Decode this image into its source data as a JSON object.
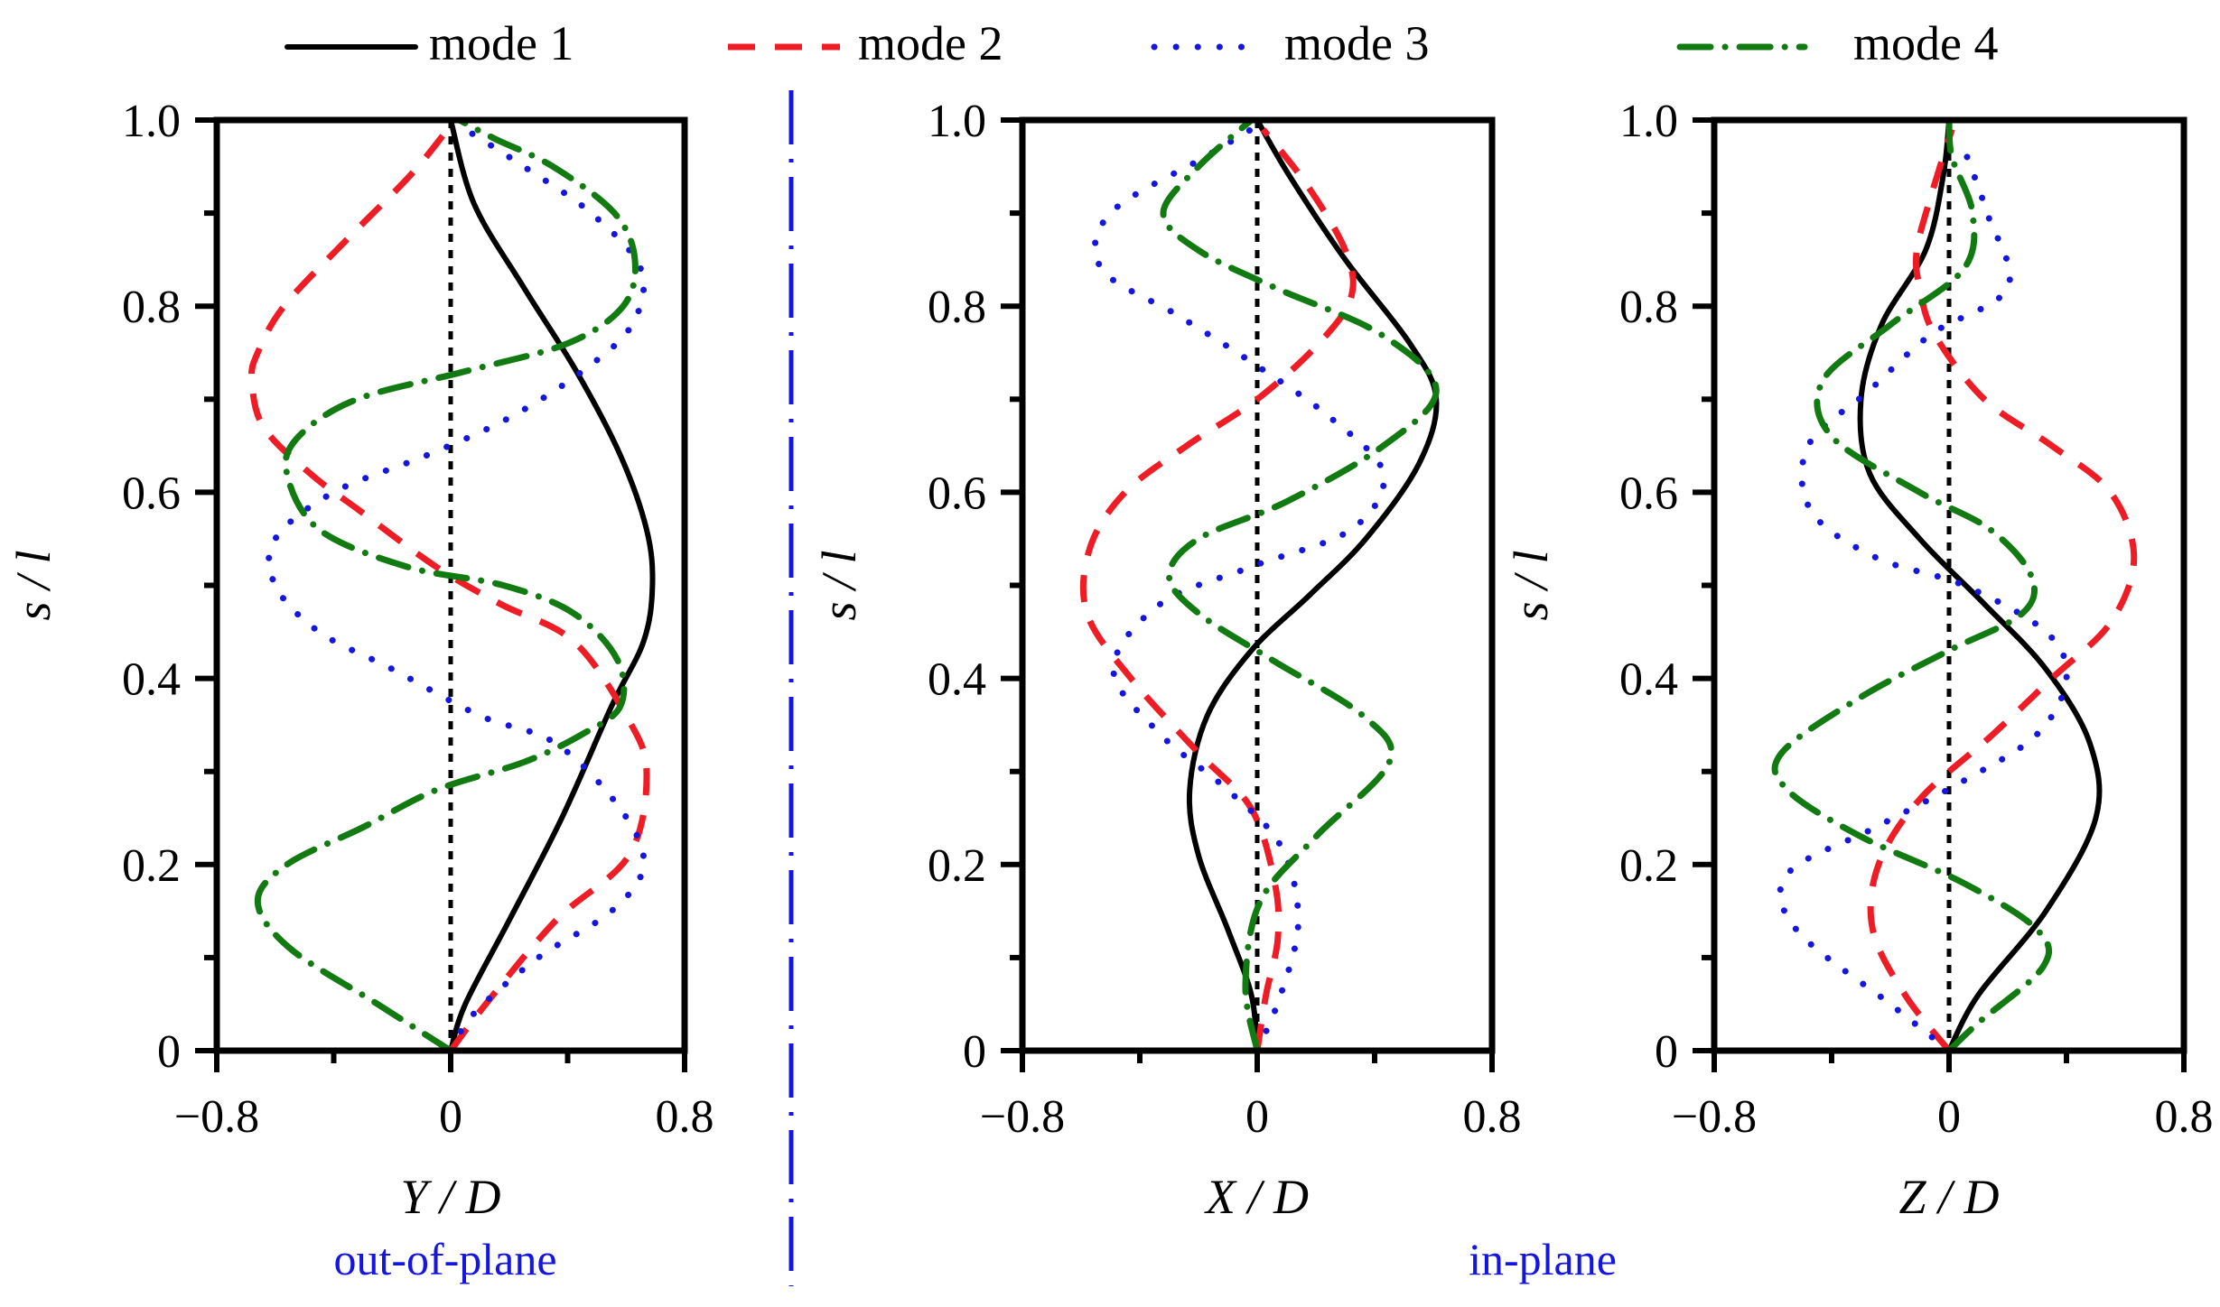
{
  "legend": [
    {
      "name": "mode 1",
      "color": "#000000",
      "dash": "solid"
    },
    {
      "name": "mode 2",
      "color": "#ee1c25",
      "dash": "dashed"
    },
    {
      "name": "mode 3",
      "color": "#1515e0",
      "dash": "dotted"
    },
    {
      "name": "mode 4",
      "color": "#117a11",
      "dash": "dashdot"
    }
  ],
  "group_labels": {
    "out_of_plane": "out-of-plane",
    "in_plane": "in-plane"
  },
  "group_label_color": "#1515e0",
  "chart_data": [
    {
      "type": "line",
      "xlabel": "Y / D",
      "ylabel": "s / l",
      "xlim": [
        -0.8,
        0.8
      ],
      "ylim": [
        0,
        1.0
      ],
      "xticks": [
        -0.8,
        0,
        0.8
      ],
      "xtick_labels": [
        "−0.8",
        "0",
        "0.8"
      ],
      "yticks": [
        0,
        0.2,
        0.4,
        0.6,
        0.8,
        1.0
      ],
      "ytick_labels": [
        "0",
        "0.2",
        "0.4",
        "0.6",
        "0.8",
        "1.0"
      ],
      "zero_line": true,
      "series": [
        {
          "name": "mode 1",
          "points": [
            [
              0,
              0
            ],
            [
              0.05,
              0.05
            ],
            [
              0.2,
              0.14
            ],
            [
              0.38,
              0.25
            ],
            [
              0.55,
              0.37
            ],
            [
              0.66,
              0.44
            ],
            [
              0.69,
              0.5
            ],
            [
              0.67,
              0.56
            ],
            [
              0.58,
              0.64
            ],
            [
              0.43,
              0.73
            ],
            [
              0.25,
              0.82
            ],
            [
              0.08,
              0.91
            ],
            [
              0,
              1
            ]
          ]
        },
        {
          "name": "mode 2",
          "points": [
            [
              0,
              0
            ],
            [
              0.12,
              0.05
            ],
            [
              0.36,
              0.14
            ],
            [
              0.61,
              0.21
            ],
            [
              0.67,
              0.3
            ],
            [
              0.6,
              0.36
            ],
            [
              0.42,
              0.44
            ],
            [
              0.17,
              0.48
            ],
            [
              -0.05,
              0.52
            ],
            [
              -0.31,
              0.58
            ],
            [
              -0.48,
              0.62
            ],
            [
              -0.64,
              0.67
            ],
            [
              -0.68,
              0.72
            ],
            [
              -0.66,
              0.75
            ],
            [
              -0.57,
              0.8
            ],
            [
              -0.36,
              0.87
            ],
            [
              -0.14,
              0.94
            ],
            [
              -0.01,
              0.99
            ]
          ]
        },
        {
          "name": "mode 3",
          "points": [
            [
              0,
              0
            ],
            [
              0.08,
              0.04
            ],
            [
              0.3,
              0.1
            ],
            [
              0.55,
              0.15
            ],
            [
              0.66,
              0.2
            ],
            [
              0.58,
              0.26
            ],
            [
              0.36,
              0.33
            ],
            [
              0.1,
              0.36
            ],
            [
              -0.2,
              0.41
            ],
            [
              -0.45,
              0.45
            ],
            [
              -0.6,
              0.5
            ],
            [
              -0.6,
              0.55
            ],
            [
              -0.4,
              0.6
            ],
            [
              -0.08,
              0.64
            ],
            [
              0.2,
              0.68
            ],
            [
              0.45,
              0.73
            ],
            [
              0.62,
              0.78
            ],
            [
              0.65,
              0.84
            ],
            [
              0.48,
              0.9
            ],
            [
              0.25,
              0.95
            ],
            [
              0.05,
              0.99
            ]
          ]
        },
        {
          "name": "mode 4",
          "points": [
            [
              0,
              0
            ],
            [
              -0.25,
              0.05
            ],
            [
              -0.55,
              0.11
            ],
            [
              -0.66,
              0.16
            ],
            [
              -0.56,
              0.2
            ],
            [
              -0.3,
              0.24
            ],
            [
              -0.05,
              0.28
            ],
            [
              0.25,
              0.31
            ],
            [
              0.45,
              0.34
            ],
            [
              0.58,
              0.37
            ],
            [
              0.57,
              0.42
            ],
            [
              0.42,
              0.47
            ],
            [
              0.18,
              0.5
            ],
            [
              -0.15,
              0.52
            ],
            [
              -0.45,
              0.56
            ],
            [
              -0.56,
              0.62
            ],
            [
              -0.52,
              0.66
            ],
            [
              -0.32,
              0.7
            ],
            [
              0.05,
              0.73
            ],
            [
              0.4,
              0.76
            ],
            [
              0.59,
              0.8
            ],
            [
              0.63,
              0.85
            ],
            [
              0.56,
              0.9
            ],
            [
              0.35,
              0.95
            ],
            [
              0.15,
              0.98
            ],
            [
              0.03,
              1.0
            ]
          ]
        }
      ]
    },
    {
      "type": "line",
      "xlabel": "X / D",
      "ylabel": "s / l",
      "xlim": [
        -0.8,
        0.8
      ],
      "ylim": [
        0,
        1.0
      ],
      "xticks": [
        -0.8,
        0,
        0.8
      ],
      "xtick_labels": [
        "−0.8",
        "0",
        "0.8"
      ],
      "yticks": [
        0,
        0.2,
        0.4,
        0.6,
        0.8,
        1.0
      ],
      "ytick_labels": [
        "0",
        "0.2",
        "0.4",
        "0.6",
        "0.8",
        "1.0"
      ],
      "zero_line": true,
      "series": [
        {
          "name": "mode 1",
          "points": [
            [
              0,
              0
            ],
            [
              -0.02,
              0.06
            ],
            [
              -0.1,
              0.13
            ],
            [
              -0.2,
              0.21
            ],
            [
              -0.23,
              0.28
            ],
            [
              -0.17,
              0.36
            ],
            [
              -0.02,
              0.43
            ],
            [
              0.18,
              0.49
            ],
            [
              0.37,
              0.55
            ],
            [
              0.55,
              0.63
            ],
            [
              0.61,
              0.7
            ],
            [
              0.52,
              0.76
            ],
            [
              0.3,
              0.85
            ],
            [
              0.11,
              0.94
            ],
            [
              0,
              1
            ]
          ]
        },
        {
          "name": "mode 2",
          "points": [
            [
              0,
              0
            ],
            [
              0.03,
              0.06
            ],
            [
              0.07,
              0.12
            ],
            [
              0.06,
              0.18
            ],
            [
              -0.02,
              0.26
            ],
            [
              -0.2,
              0.32
            ],
            [
              -0.43,
              0.4
            ],
            [
              -0.58,
              0.47
            ],
            [
              -0.57,
              0.54
            ],
            [
              -0.45,
              0.6
            ],
            [
              -0.24,
              0.65
            ],
            [
              0,
              0.7
            ],
            [
              0.21,
              0.76
            ],
            [
              0.32,
              0.81
            ],
            [
              0.3,
              0.86
            ],
            [
              0.17,
              0.93
            ],
            [
              0.02,
              0.99
            ]
          ]
        },
        {
          "name": "mode 3",
          "points": [
            [
              0,
              0
            ],
            [
              0.08,
              0.06
            ],
            [
              0.14,
              0.14
            ],
            [
              0.08,
              0.22
            ],
            [
              -0.1,
              0.28
            ],
            [
              -0.33,
              0.34
            ],
            [
              -0.49,
              0.41
            ],
            [
              -0.33,
              0.48
            ],
            [
              -0.02,
              0.52
            ],
            [
              0.32,
              0.56
            ],
            [
              0.43,
              0.62
            ],
            [
              0.25,
              0.68
            ],
            [
              -0.02,
              0.74
            ],
            [
              -0.27,
              0.79
            ],
            [
              -0.53,
              0.84
            ],
            [
              -0.5,
              0.9
            ],
            [
              -0.18,
              0.96
            ],
            [
              -0.02,
              0.99
            ]
          ]
        },
        {
          "name": "mode 4",
          "points": [
            [
              0,
              0
            ],
            [
              -0.04,
              0.07
            ],
            [
              0.01,
              0.16
            ],
            [
              0.2,
              0.23
            ],
            [
              0.45,
              0.31
            ],
            [
              0.36,
              0.36
            ],
            [
              0.05,
              0.42
            ],
            [
              -0.2,
              0.47
            ],
            [
              -0.3,
              0.51
            ],
            [
              -0.2,
              0.55
            ],
            [
              0.1,
              0.59
            ],
            [
              0.43,
              0.65
            ],
            [
              0.61,
              0.71
            ],
            [
              0.42,
              0.77
            ],
            [
              0.06,
              0.82
            ],
            [
              -0.2,
              0.86
            ],
            [
              -0.32,
              0.9
            ],
            [
              -0.2,
              0.95
            ],
            [
              -0.02,
              1.0
            ]
          ]
        }
      ]
    },
    {
      "type": "line",
      "xlabel": "Z / D",
      "ylabel": "s / l",
      "xlim": [
        -0.8,
        0.8
      ],
      "ylim": [
        0,
        1.0
      ],
      "xticks": [
        -0.8,
        0,
        0.8
      ],
      "xtick_labels": [
        "−0.8",
        "0",
        "0.8"
      ],
      "yticks": [
        0,
        0.2,
        0.4,
        0.6,
        0.8,
        1.0
      ],
      "ytick_labels": [
        "0",
        "0.2",
        "0.4",
        "0.6",
        "0.8",
        "1.0"
      ],
      "zero_line": true,
      "series": [
        {
          "name": "mode 1",
          "points": [
            [
              0,
              0
            ],
            [
              0.1,
              0.06
            ],
            [
              0.33,
              0.15
            ],
            [
              0.5,
              0.25
            ],
            [
              0.48,
              0.33
            ],
            [
              0.33,
              0.41
            ],
            [
              0.12,
              0.48
            ],
            [
              -0.1,
              0.55
            ],
            [
              -0.27,
              0.62
            ],
            [
              -0.3,
              0.7
            ],
            [
              -0.23,
              0.78
            ],
            [
              -0.08,
              0.86
            ],
            [
              -0.02,
              0.94
            ],
            [
              0,
              1
            ]
          ]
        },
        {
          "name": "mode 2",
          "points": [
            [
              0,
              0
            ],
            [
              -0.15,
              0.06
            ],
            [
              -0.26,
              0.13
            ],
            [
              -0.24,
              0.2
            ],
            [
              -0.1,
              0.27
            ],
            [
              0.15,
              0.34
            ],
            [
              0.35,
              0.4
            ],
            [
              0.55,
              0.46
            ],
            [
              0.63,
              0.53
            ],
            [
              0.55,
              0.6
            ],
            [
              0.35,
              0.65
            ],
            [
              0.12,
              0.7
            ],
            [
              -0.05,
              0.77
            ],
            [
              -0.1,
              0.82
            ],
            [
              -0.11,
              0.86
            ],
            [
              -0.06,
              0.92
            ],
            [
              0.01,
              0.99
            ]
          ]
        },
        {
          "name": "mode 3",
          "points": [
            [
              0,
              0
            ],
            [
              -0.2,
              0.05
            ],
            [
              -0.52,
              0.13
            ],
            [
              -0.55,
              0.19
            ],
            [
              -0.25,
              0.24
            ],
            [
              0.05,
              0.29
            ],
            [
              0.3,
              0.34
            ],
            [
              0.4,
              0.4
            ],
            [
              0.33,
              0.45
            ],
            [
              0.05,
              0.5
            ],
            [
              -0.25,
              0.53
            ],
            [
              -0.47,
              0.58
            ],
            [
              -0.48,
              0.65
            ],
            [
              -0.27,
              0.71
            ],
            [
              -0.06,
              0.77
            ],
            [
              0.2,
              0.82
            ],
            [
              0.13,
              0.9
            ],
            [
              0.05,
              0.97
            ]
          ]
        },
        {
          "name": "mode 4",
          "points": [
            [
              0,
              0
            ],
            [
              0.1,
              0.03
            ],
            [
              0.32,
              0.09
            ],
            [
              0.3,
              0.13
            ],
            [
              0.05,
              0.18
            ],
            [
              -0.3,
              0.23
            ],
            [
              -0.55,
              0.28
            ],
            [
              -0.57,
              0.32
            ],
            [
              -0.3,
              0.38
            ],
            [
              0,
              0.43
            ],
            [
              0.25,
              0.47
            ],
            [
              0.28,
              0.51
            ],
            [
              0.14,
              0.56
            ],
            [
              -0.1,
              0.6
            ],
            [
              -0.4,
              0.66
            ],
            [
              -0.43,
              0.72
            ],
            [
              -0.2,
              0.78
            ],
            [
              0.05,
              0.84
            ],
            [
              0.08,
              0.9
            ],
            [
              0.01,
              0.96
            ],
            [
              0,
              1.0
            ]
          ]
        }
      ]
    }
  ]
}
